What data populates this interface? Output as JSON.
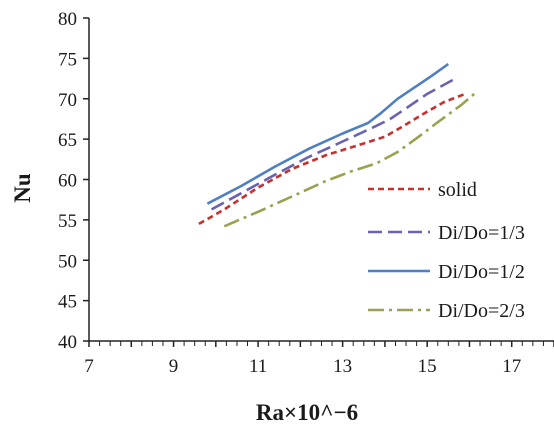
{
  "chart_data": {
    "type": "line",
    "title": "",
    "xlabel": "Ra×10^−6",
    "ylabel": "Nu",
    "xlim": [
      7,
      18
    ],
    "ylim": [
      40,
      80
    ],
    "x_ticks": [
      "7",
      "9",
      "11",
      "13",
      "15",
      "17"
    ],
    "y_ticks": [
      "40",
      "45",
      "50",
      "55",
      "60",
      "65",
      "70",
      "75",
      "80"
    ],
    "grid": false,
    "legend_position": "right",
    "series": [
      {
        "name": "solid",
        "color": "#c8302e",
        "dash": "short-dash",
        "x": [
          9.6,
          10.2,
          11.0,
          11.8,
          12.6,
          13.4,
          14.0,
          14.4,
          14.9,
          15.4,
          15.9
        ],
        "y": [
          54.5,
          56.3,
          59.0,
          61.3,
          63.0,
          64.3,
          65.3,
          66.5,
          68.1,
          69.6,
          70.6
        ]
      },
      {
        "name": "Di/Do=1/3",
        "color": "#6a64b0",
        "dash": "long-dash",
        "x": [
          9.9,
          10.6,
          11.4,
          12.2,
          13.0,
          13.7,
          14.1,
          14.5,
          15.0,
          15.7
        ],
        "y": [
          56.3,
          58.3,
          60.6,
          62.8,
          64.7,
          66.4,
          67.4,
          68.8,
          70.6,
          72.6
        ]
      },
      {
        "name": "Di/Do=1/2",
        "color": "#4f7fc0",
        "dash": "solid",
        "x": [
          9.8,
          10.6,
          11.4,
          12.2,
          13.0,
          13.6,
          13.9,
          14.3,
          14.7,
          15.1,
          15.5
        ],
        "y": [
          57.0,
          59.2,
          61.6,
          63.8,
          65.7,
          67.0,
          68.2,
          70.0,
          71.4,
          72.8,
          74.3
        ]
      },
      {
        "name": "Di/Do=2/3",
        "color": "#9ba14e",
        "dash": "dash-dot",
        "x": [
          10.2,
          11.0,
          11.8,
          12.6,
          13.2,
          13.8,
          14.3,
          14.8,
          15.3,
          15.8,
          16.2
        ],
        "y": [
          54.2,
          56.0,
          57.9,
          59.8,
          61.0,
          62.0,
          63.4,
          65.3,
          67.3,
          69.2,
          71.0
        ]
      }
    ]
  }
}
